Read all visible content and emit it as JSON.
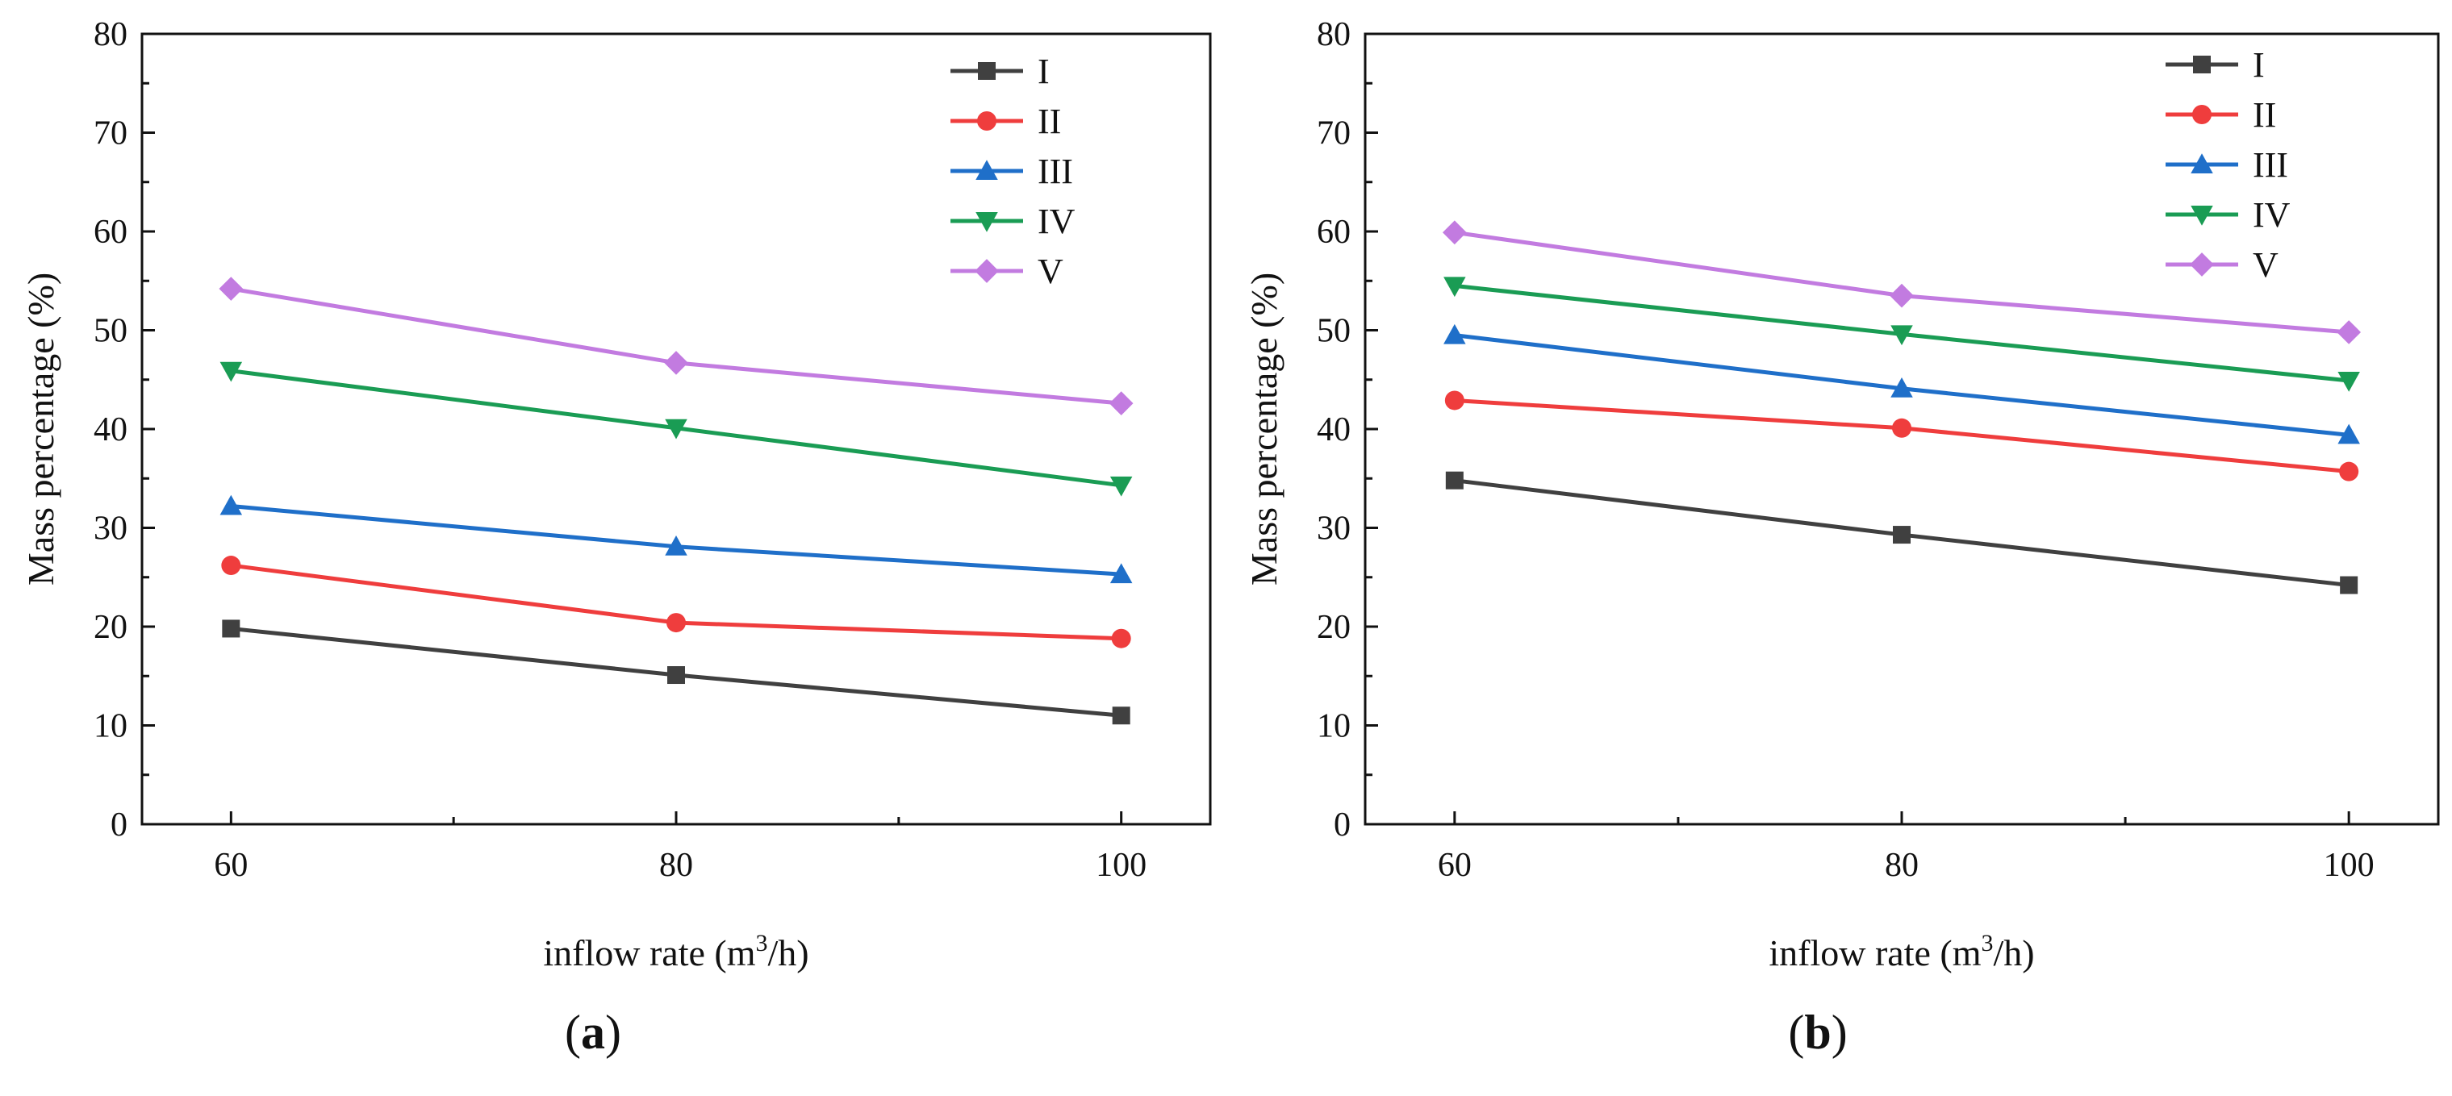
{
  "chart_data": [
    {
      "type": "line",
      "panel_label": "a",
      "xlabel": "inflow rate (m3/h)",
      "xlabel_parts": {
        "pre": "inflow rate (m",
        "sup": "3",
        "post": "/h)"
      },
      "ylabel": "Mass percentage (%)",
      "x": [
        60,
        80,
        100
      ],
      "xlim": [
        56,
        104
      ],
      "ylim": [
        0,
        80
      ],
      "yticks": [
        0,
        10,
        20,
        30,
        40,
        50,
        60,
        70,
        80
      ],
      "grid": false,
      "legend_position": "top-right",
      "series": [
        {
          "name": "I",
          "color": "#404040",
          "marker": "square",
          "values": [
            19.8,
            15.1,
            11.0
          ]
        },
        {
          "name": "II",
          "color": "#ef3d3d",
          "marker": "circle",
          "values": [
            26.2,
            20.4,
            18.8
          ]
        },
        {
          "name": "III",
          "color": "#1f6fc9",
          "marker": "triangle-up",
          "values": [
            32.2,
            28.1,
            25.3
          ]
        },
        {
          "name": "IV",
          "color": "#1a9c54",
          "marker": "triangle-down",
          "values": [
            45.9,
            40.1,
            34.3
          ]
        },
        {
          "name": "V",
          "color": "#c27be0",
          "marker": "diamond",
          "values": [
            54.2,
            46.7,
            42.6
          ]
        }
      ]
    },
    {
      "type": "line",
      "panel_label": "b",
      "xlabel": "inflow rate (m3/h)",
      "xlabel_parts": {
        "pre": "inflow rate (m",
        "sup": "3",
        "post": "/h)"
      },
      "ylabel": "Mass percentage (%)",
      "x": [
        60,
        80,
        100
      ],
      "xlim": [
        56,
        104
      ],
      "ylim": [
        0,
        80
      ],
      "yticks": [
        0,
        10,
        20,
        30,
        40,
        50,
        60,
        70,
        80
      ],
      "grid": false,
      "legend_position": "top-right",
      "series": [
        {
          "name": "I",
          "color": "#404040",
          "marker": "square",
          "values": [
            34.8,
            29.3,
            24.2
          ]
        },
        {
          "name": "II",
          "color": "#ef3d3d",
          "marker": "circle",
          "values": [
            42.9,
            40.1,
            35.7
          ]
        },
        {
          "name": "III",
          "color": "#1f6fc9",
          "marker": "triangle-up",
          "values": [
            49.5,
            44.1,
            39.4
          ]
        },
        {
          "name": "IV",
          "color": "#1a9c54",
          "marker": "triangle-down",
          "values": [
            54.5,
            49.6,
            44.9
          ]
        },
        {
          "name": "V",
          "color": "#c27be0",
          "marker": "diamond",
          "values": [
            59.9,
            53.5,
            49.8
          ]
        }
      ]
    }
  ]
}
